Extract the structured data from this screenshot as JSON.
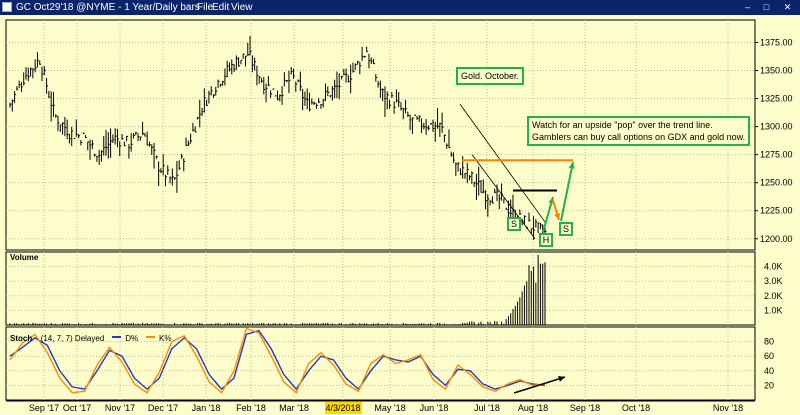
{
  "window": {
    "title": "GC Oct29'18 @NYME - 1 Year/Daily bars",
    "menu": [
      "File",
      "Edit",
      "View"
    ],
    "controls": [
      "–",
      "□",
      "✕"
    ]
  },
  "panes": {
    "volume_label": "Volume",
    "stoch_label": "Stoch",
    "stoch_params": "(14, 7, 7) Delayed",
    "stoch_d_label": "D%",
    "stoch_k_label": "K%"
  },
  "annotations": {
    "title_box": "Gold. October.",
    "note_line1": "Watch for an upside \"pop\" over the trend line.",
    "note_line2": "Gamblers can buy call options on GDX and gold now.",
    "pattern_s1": "S",
    "pattern_h": "H",
    "pattern_s2": "S"
  },
  "colors": {
    "background": "#fdfdcc",
    "title_bar": "#0a246a",
    "bars": "#000000",
    "resistance_line": "#ff8000",
    "green_arrow": "#22b14c",
    "stoch_d": "#1f3fbf",
    "stoch_k": "#ff8c00",
    "annotation_border": "#22b14c"
  },
  "chart_data": [
    {
      "type": "bar",
      "title": "",
      "y_ticks": [
        "1375.00",
        "1350.00",
        "1325.00",
        "1300.00",
        "1275.00",
        "1250.00",
        "1225.00",
        "1200.00"
      ],
      "ylim": [
        1190,
        1395
      ],
      "x_ticks": [
        "Sep '17",
        "Oct '17",
        "Nov '17",
        "Dec '17",
        "Jan '18",
        "Feb '18",
        "Mar '18",
        "4/3/2018",
        "May '18",
        "Jun '18",
        "Jul '18",
        "Aug '18",
        "Sep '18",
        "Oct '18",
        "Nov '18"
      ],
      "highlighted_x_tick": "4/3/2018",
      "price_path": [
        {
          "date": "Sep '17",
          "close": 1320
        },
        {
          "date": "Sep '17",
          "close": 1345
        },
        {
          "date": "Sep '17",
          "close": 1360
        },
        {
          "date": "Oct '17",
          "close": 1310
        },
        {
          "date": "Oct '17",
          "close": 1295
        },
        {
          "date": "Oct '17",
          "close": 1290
        },
        {
          "date": "Nov '17",
          "close": 1275
        },
        {
          "date": "Nov '17",
          "close": 1290
        },
        {
          "date": "Nov '17",
          "close": 1285
        },
        {
          "date": "Dec '17",
          "close": 1295
        },
        {
          "date": "Dec '17",
          "close": 1265
        },
        {
          "date": "Dec '17",
          "close": 1250
        },
        {
          "date": "Jan '18",
          "close": 1285
        },
        {
          "date": "Jan '18",
          "close": 1320
        },
        {
          "date": "Jan '18",
          "close": 1340
        },
        {
          "date": "Jan '18",
          "close": 1355
        },
        {
          "date": "Feb '18",
          "close": 1365
        },
        {
          "date": "Feb '18",
          "close": 1340
        },
        {
          "date": "Feb '18",
          "close": 1328
        },
        {
          "date": "Mar '18",
          "close": 1345
        },
        {
          "date": "Mar '18",
          "close": 1320
        },
        {
          "date": "Mar '18",
          "close": 1325
        },
        {
          "date": "4/3/2018",
          "close": 1335
        },
        {
          "date": "4/3/2018",
          "close": 1348
        },
        {
          "date": "4/3/2018",
          "close": 1368
        },
        {
          "date": "May '18",
          "close": 1330
        },
        {
          "date": "May '18",
          "close": 1320
        },
        {
          "date": "May '18",
          "close": 1305
        },
        {
          "date": "Jun '18",
          "close": 1302
        },
        {
          "date": "Jun '18",
          "close": 1300
        },
        {
          "date": "Jun '18",
          "close": 1265
        },
        {
          "date": "Jul '18",
          "close": 1255
        },
        {
          "date": "Jul '18",
          "close": 1240
        },
        {
          "date": "Jul '18",
          "close": 1235
        },
        {
          "date": "Aug '18",
          "close": 1220
        },
        {
          "date": "Aug '18",
          "close": 1212
        },
        {
          "date": "Aug '18",
          "close": 1205
        }
      ],
      "resistance_level": 1270,
      "downtrend_top": [
        {
          "date": "Jun '18",
          "price": 1320
        },
        {
          "date": "Aug '18",
          "price": 1215
        }
      ],
      "downtrend_bottom": [
        {
          "date": "Jun '18",
          "price": 1275
        },
        {
          "date": "Aug '18",
          "price": 1200
        }
      ],
      "neckline": 1243
    },
    {
      "type": "bar",
      "title": "Volume",
      "y_ticks": [
        "4.0K",
        "3.0K",
        "2.0K",
        "1.0K"
      ],
      "ylim": [
        0,
        5000
      ],
      "late_volume_values": [
        400,
        600,
        800,
        1100,
        1300,
        1600,
        1900,
        2300,
        2700,
        3000,
        4100,
        3700,
        4000,
        2900,
        4800,
        4200,
        4200,
        4300
      ]
    },
    {
      "type": "line",
      "title": "Stoch (14, 7, 7) Delayed",
      "y_ticks": [
        "80",
        "60",
        "40",
        "20"
      ],
      "ylim": [
        0,
        100
      ],
      "series": [
        {
          "name": "D%",
          "values": [
            60,
            72,
            85,
            75,
            40,
            18,
            15,
            40,
            68,
            60,
            30,
            15,
            30,
            70,
            85,
            70,
            35,
            15,
            30,
            90,
            95,
            70,
            35,
            15,
            40,
            60,
            55,
            30,
            15,
            40,
            60,
            55,
            52,
            60,
            35,
            20,
            42,
            40,
            22,
            15,
            20,
            26,
            22,
            20
          ]
        },
        {
          "name": "K%",
          "values": [
            55,
            78,
            90,
            65,
            30,
            10,
            12,
            48,
            72,
            52,
            22,
            10,
            38,
            80,
            88,
            60,
            25,
            10,
            40,
            98,
            92,
            60,
            25,
            10,
            50,
            65,
            48,
            22,
            12,
            50,
            62,
            50,
            55,
            62,
            28,
            15,
            48,
            35,
            18,
            12,
            22,
            28,
            20,
            22
          ]
        }
      ]
    }
  ]
}
